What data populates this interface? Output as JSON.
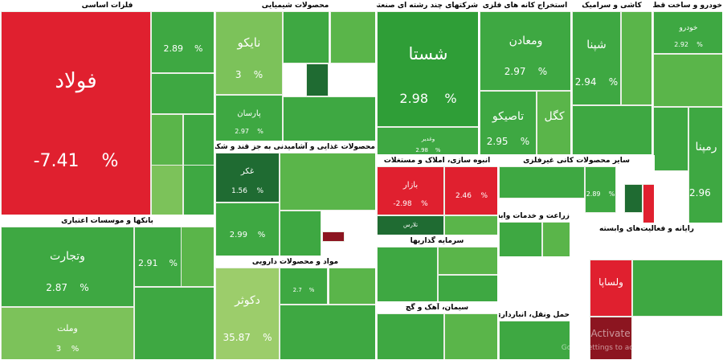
{
  "chart_data": {
    "type": "treemap",
    "colors": {
      "strong_up": "#2f9e37",
      "up": "#3ea842",
      "mid_up": "#5ab54a",
      "light_up": "#7cc25a",
      "pale_up": "#9ccd6b",
      "dark_up": "#1f6b32",
      "down": "#e0202f",
      "dark_down": "#8c1520"
    },
    "sectors": [
      {
        "name": "فلزات اساسی",
        "cells": [
          {
            "name": "فولاد",
            "change": "-7.41",
            "big": true,
            "tone": "down"
          },
          {
            "name": "",
            "change": "2.89",
            "tone": "up"
          },
          {
            "name": "",
            "change": "",
            "tone": "up"
          },
          {
            "name": "",
            "change": "",
            "tone": "mid_up"
          },
          {
            "name": "",
            "change": "",
            "tone": "up"
          },
          {
            "name": "",
            "change": "",
            "tone": "light_up"
          },
          {
            "name": "",
            "change": "",
            "tone": "up"
          }
        ]
      },
      {
        "name": "محصولات شیمیایی",
        "cells": [
          {
            "name": "نایکو",
            "change": "3",
            "big": true,
            "tone": "light_up"
          },
          {
            "name": "پارسان",
            "change": "2.97",
            "tone": "up"
          },
          {
            "name": "",
            "change": "",
            "tone": "up"
          },
          {
            "name": "",
            "change": "",
            "tone": "dark_up"
          },
          {
            "name": "",
            "change": "",
            "tone": "mid_up"
          },
          {
            "name": "",
            "change": "",
            "tone": "up"
          }
        ]
      },
      {
        "name": "شرکتهای چند رشته ای صنعتی",
        "cells": [
          {
            "name": "شستا",
            "change": "2.98",
            "big": true,
            "tone": "strong_up"
          },
          {
            "name": "وغدیر",
            "change": "2.98",
            "tone": "up"
          },
          {
            "name": "",
            "change": "",
            "tone": "mid_up"
          },
          {
            "name": "",
            "change": "",
            "tone": "up"
          }
        ]
      },
      {
        "name": "استخراج کانه های فلزی",
        "cells": [
          {
            "name": "ومعادن",
            "change": "2.97",
            "tone": "up"
          },
          {
            "name": "تاصیکو",
            "change": "2.95",
            "tone": "up"
          },
          {
            "name": "کگل",
            "change": "",
            "tone": "mid_up"
          },
          {
            "name": "",
            "change": "",
            "tone": "up"
          }
        ]
      },
      {
        "name": "کاشی و سرامیک",
        "cells": [
          {
            "name": "شپنا",
            "change": "2.94",
            "tone": "up"
          },
          {
            "name": "",
            "change": "",
            "tone": "mid_up"
          },
          {
            "name": "",
            "change": "",
            "tone": "up"
          }
        ]
      },
      {
        "name": "خودرو و ساخت قطعات",
        "cells": [
          {
            "name": "خودرو",
            "change": "2.92",
            "tone": "up"
          },
          {
            "name": "",
            "change": "",
            "tone": "mid_up"
          },
          {
            "name": "",
            "change": "",
            "tone": "up"
          },
          {
            "name": "رمپنا",
            "change": "2.96",
            "tone": "up"
          }
        ]
      },
      {
        "name": "محصولات غذایی و آشامیدنی به جز قند و شکر",
        "cells": [
          {
            "name": "غکر",
            "change": "1.56",
            "tone": "dark_up"
          },
          {
            "name": "",
            "change": "2.99",
            "tone": "up"
          },
          {
            "name": "",
            "change": "",
            "tone": "mid_up"
          },
          {
            "name": "",
            "change": "",
            "tone": "dark_down"
          },
          {
            "name": "",
            "change": "",
            "tone": "up"
          }
        ]
      },
      {
        "name": "انبوه سازی، املاک و مستغلات",
        "cells": [
          {
            "name": "بازار",
            "change": "-2.98",
            "tone": "down"
          },
          {
            "name": "",
            "change": "2.46",
            "tone": "down"
          },
          {
            "name": "تلارس",
            "change": "",
            "tone": "dark_up"
          },
          {
            "name": "",
            "change": "",
            "tone": "mid_up"
          }
        ]
      },
      {
        "name": "سایر محصولات کانی غیرفلزی",
        "cells": [
          {
            "name": "",
            "change": "",
            "tone": "up"
          },
          {
            "name": "",
            "change": "2.89",
            "tone": "up"
          },
          {
            "name": "",
            "change": "",
            "tone": "dark_up"
          },
          {
            "name": "",
            "change": "",
            "tone": "down"
          }
        ]
      },
      {
        "name": "بانکها و موسسات اعتباری",
        "cells": [
          {
            "name": "وتجارت",
            "change": "2.87",
            "big": true,
            "tone": "up"
          },
          {
            "name": "وملت",
            "change": "3",
            "tone": "light_up"
          },
          {
            "name": "",
            "change": "2.91",
            "tone": "up"
          },
          {
            "name": "",
            "change": "",
            "tone": "mid_up"
          },
          {
            "name": "",
            "change": "",
            "tone": "up"
          }
        ]
      },
      {
        "name": "مواد و محصولات دارویی",
        "cells": [
          {
            "name": "دکوثر",
            "change": "35.87",
            "tone": "pale_up"
          },
          {
            "name": "",
            "change": "2.7",
            "tone": "up"
          },
          {
            "name": "",
            "change": "",
            "tone": "mid_up"
          },
          {
            "name": "",
            "change": "",
            "tone": "up"
          }
        ]
      },
      {
        "name": "سرمایه گذاریها",
        "cells": [
          {
            "name": "",
            "change": "",
            "tone": "up"
          },
          {
            "name": "",
            "change": "",
            "tone": "mid_up"
          },
          {
            "name": "",
            "change": "",
            "tone": "up"
          }
        ]
      },
      {
        "name": "زراعت و خدمات وابسته",
        "cells": [
          {
            "name": "",
            "change": "",
            "tone": "up"
          },
          {
            "name": "",
            "change": "",
            "tone": "mid_up"
          }
        ]
      },
      {
        "name": "سیمان، آهک و گچ",
        "cells": [
          {
            "name": "",
            "change": "",
            "tone": "up"
          },
          {
            "name": "",
            "change": "",
            "tone": "mid_up"
          }
        ]
      },
      {
        "name": "حمل ونقل، انبارداری و ارتباطات",
        "cells": [
          {
            "name": "",
            "change": "",
            "tone": "up"
          }
        ]
      },
      {
        "name": "رایانه و فعالیت‌های وابسته",
        "cells": [
          {
            "name": "ولساپا",
            "change": "",
            "tone": "down"
          },
          {
            "name": "",
            "change": "",
            "tone": "up"
          },
          {
            "name": "",
            "change": "",
            "tone": "dark_down"
          }
        ]
      }
    ],
    "percent_sign": "%"
  },
  "watermark": {
    "line1": "Activate Windows",
    "line2": "Go to Settings to activate Windows."
  }
}
